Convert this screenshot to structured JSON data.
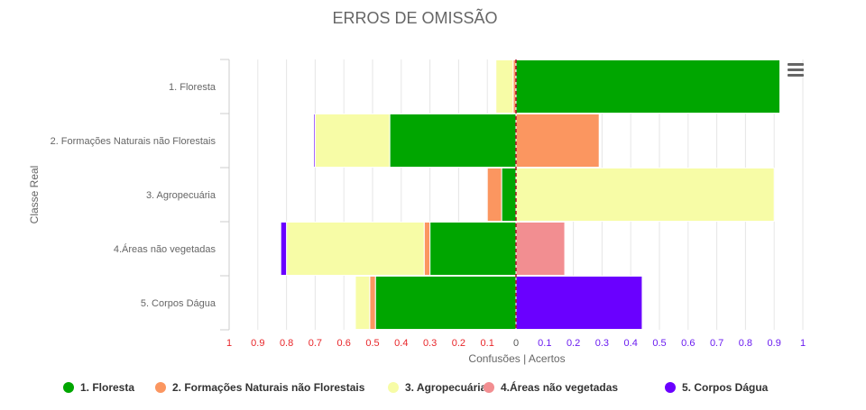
{
  "chart_data": {
    "type": "bar",
    "orientation": "horizontal-diverging",
    "title": "ERROS DE OMISSÃO",
    "xlabel": "Confusões | Acertos",
    "ylabel": "Classe Real",
    "xlim": [
      -1,
      1
    ],
    "x_ticks": [
      {
        "value": -1,
        "label": "1"
      },
      {
        "value": -0.9,
        "label": "0.9"
      },
      {
        "value": -0.8,
        "label": "0.8"
      },
      {
        "value": -0.7,
        "label": "0.7"
      },
      {
        "value": -0.6,
        "label": "0.6"
      },
      {
        "value": -0.5,
        "label": "0.5"
      },
      {
        "value": -0.4,
        "label": "0.4"
      },
      {
        "value": -0.3,
        "label": "0.3"
      },
      {
        "value": -0.2,
        "label": "0.2"
      },
      {
        "value": -0.1,
        "label": "0.1"
      },
      {
        "value": 0,
        "label": "0"
      },
      {
        "value": 0.1,
        "label": "0.1"
      },
      {
        "value": 0.2,
        "label": "0.2"
      },
      {
        "value": 0.3,
        "label": "0.3"
      },
      {
        "value": 0.4,
        "label": "0.4"
      },
      {
        "value": 0.5,
        "label": "0.5"
      },
      {
        "value": 0.6,
        "label": "0.6"
      },
      {
        "value": 0.7,
        "label": "0.7"
      },
      {
        "value": 0.8,
        "label": "0.8"
      },
      {
        "value": 0.9,
        "label": "0.9"
      },
      {
        "value": 1,
        "label": "1"
      }
    ],
    "negative_tick_color": "#e8262a",
    "positive_tick_color": "#6a1bf0",
    "zero_tick_color": "#555555",
    "zero_line_color": "#b0152f",
    "grid": true,
    "legend_position": "bottom",
    "categories": [
      "1. Floresta",
      "2. Formações Naturais não Florestais",
      "3. Agropecuária",
      "4.Áreas não vegetadas",
      "5. Corpos Dágua"
    ],
    "series": [
      {
        "name": "1. Floresta",
        "color": "#00a600",
        "values": [
          0.92,
          -0.44,
          -0.05,
          -0.3,
          -0.49
        ]
      },
      {
        "name": "2. Formações Naturais não Florestais",
        "color": "#fb9660",
        "values": [
          -0.01,
          0.29,
          -0.05,
          -0.02,
          -0.02
        ]
      },
      {
        "name": "3. Agropecuária",
        "color": "#f7fca6",
        "values": [
          -0.06,
          -0.26,
          0.9,
          -0.48,
          -0.05
        ]
      },
      {
        "name": "4.Áreas não vegetadas",
        "color": "#f28e91",
        "values": [
          0.0,
          0.0,
          0.0,
          0.17,
          0.0
        ]
      },
      {
        "name": "5. Corpos Dágua",
        "color": "#6a00ff",
        "values": [
          0.0,
          -0.005,
          0.0,
          -0.02,
          0.44
        ]
      }
    ]
  }
}
